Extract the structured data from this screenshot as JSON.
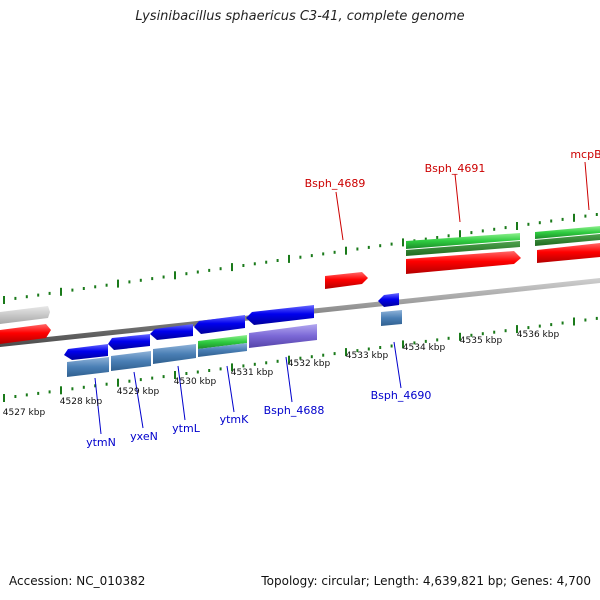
{
  "title": "Lysinibacillus sphaericus C3-41, complete genome",
  "footer": {
    "accession": "Accession: NC_010382",
    "stats": "Topology: circular; Length: 4,639,821 bp; Genes: 4,700"
  },
  "outer_ticks": [
    "4527 kbp",
    "4528 kbp",
    "4529 kbp",
    "4530 kbp",
    "4531 kbp",
    "4532 kbp",
    "4533 kbp",
    "4534 kbp",
    "4535 kbp",
    "4536 kbp"
  ],
  "gene_labels": {
    "ytmN": "ytmN",
    "yxeN": "yxeN",
    "ytmL": "ytmL",
    "ytmK": "ytmK",
    "bsph4688": "Bsph_4688",
    "bsph4690": "Bsph_4690",
    "bsph4689": "Bsph_4689",
    "bsph4691": "Bsph_4691",
    "mcpB": "mcpB"
  },
  "colors": {
    "forward_cds": "#ff0000",
    "reverse_cds": "#0000ee",
    "feature_steelblue": "#4a7fb5",
    "feature_green": "#2ecc40",
    "feature_purple": "#7b68d6",
    "feature_gray": "#c8c8c8",
    "tick_green": "#1a7a1a",
    "label_blue": "#0000cc",
    "label_red": "#cc0000"
  }
}
